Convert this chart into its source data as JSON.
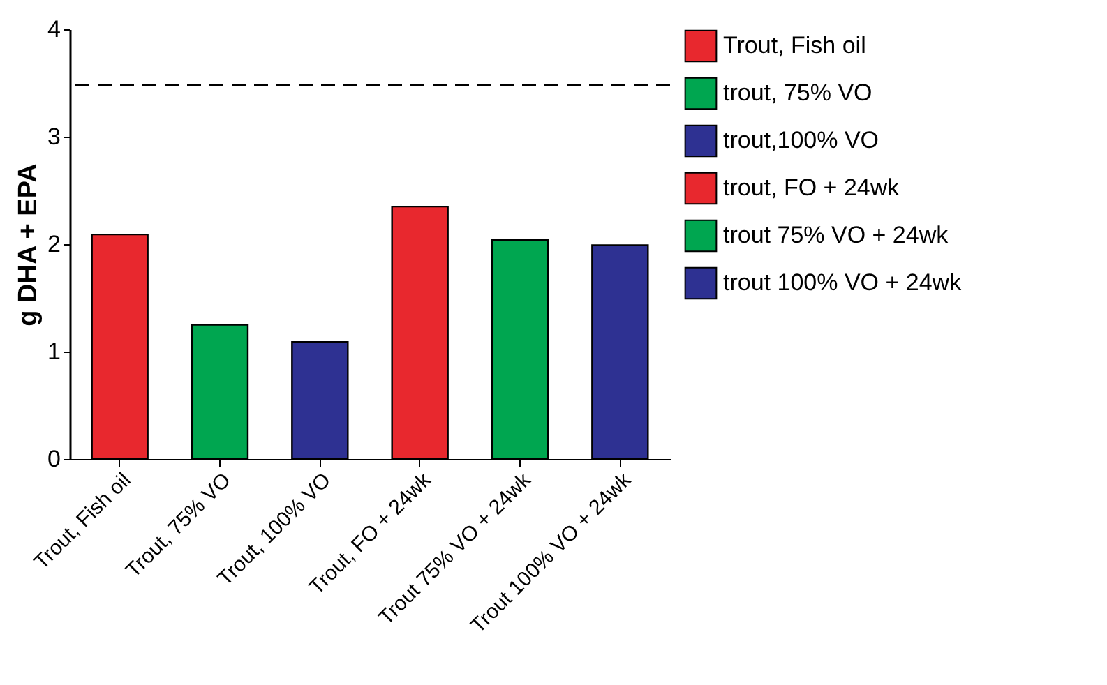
{
  "chart_data": {
    "type": "bar",
    "ylabel": "g DHA + EPA",
    "categories": [
      "Trout, Fish oil",
      "Trout, 75% VO",
      "Trout, 100% VO",
      "Trout, FO + 24wk",
      "Trout 75% VO + 24wk",
      "Trout 100% VO + 24wk"
    ],
    "series": [
      {
        "name": "Trout, Fish oil",
        "color": "#e8282e",
        "values": [
          2.09,
          null,
          null,
          null,
          null,
          null
        ]
      },
      {
        "name": "trout, 75% VO",
        "color": "#00a650",
        "values": [
          null,
          1.25,
          null,
          null,
          null,
          null
        ]
      },
      {
        "name": "trout,100% VO",
        "color": "#2e3192",
        "values": [
          null,
          null,
          1.09,
          null,
          null,
          null
        ]
      },
      {
        "name": "trout, FO + 24wk",
        "color": "#e8282e",
        "values": [
          null,
          null,
          null,
          2.35,
          null,
          null
        ]
      },
      {
        "name": "trout 75% VO + 24wk",
        "color": "#00a650",
        "values": [
          null,
          null,
          null,
          null,
          2.04,
          null
        ]
      },
      {
        "name": "trout 100% VO + 24wk",
        "color": "#2e3192",
        "values": [
          null,
          null,
          null,
          null,
          null,
          1.99
        ]
      }
    ],
    "ylim": [
      0,
      4
    ],
    "yticks": [
      0,
      1,
      2,
      3,
      4
    ],
    "grid": false,
    "legend": "right",
    "ref_lines": [
      {
        "axis": "y",
        "value": 3.48,
        "line_style": "dashed",
        "color": "#000000"
      }
    ]
  }
}
